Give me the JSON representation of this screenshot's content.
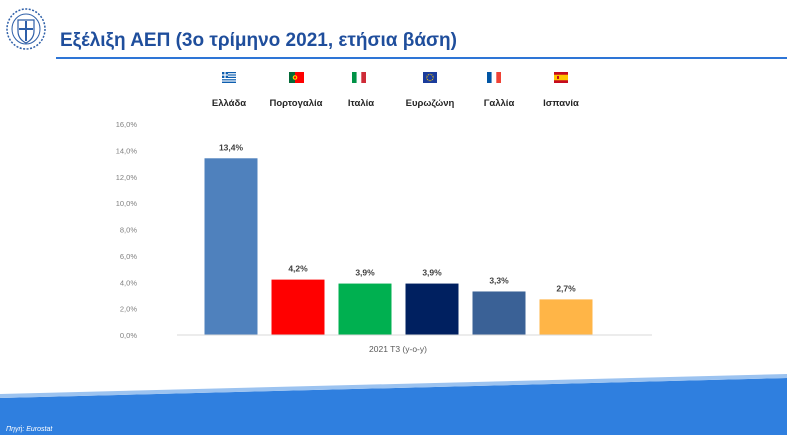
{
  "title": "Εξέλιξη ΑΕΠ (3ο τρίμηνο 2021, ετήσια βάση)",
  "source": "Πηγή: Eurostat",
  "colors": {
    "title": "#1f4e9c",
    "title_rule": "#2e75d6",
    "footer_band": "#2f7fdf",
    "greece": "#4f81bd",
    "portugal": "#ff0000",
    "italy": "#00b050",
    "eurozone": "#002060",
    "france": "#3a6196",
    "spain": "#ffb547"
  },
  "flags": [
    {
      "country": "greece",
      "icon": "greek-flag-icon"
    },
    {
      "country": "portugal",
      "icon": "portuguese-flag-icon"
    },
    {
      "country": "italy",
      "icon": "italian-flag-icon"
    },
    {
      "country": "eurozone",
      "icon": "eu-flag-icon"
    },
    {
      "country": "france",
      "icon": "french-flag-icon"
    },
    {
      "country": "spain",
      "icon": "spanish-flag-icon"
    }
  ],
  "chart_data": {
    "type": "bar",
    "title": "",
    "xlabel": "2021 T3 (y-o-y)",
    "ylabel": "",
    "ylim": [
      0,
      16
    ],
    "yticks": [
      "0,0%",
      "2,0%",
      "4,0%",
      "6,0%",
      "8,0%",
      "10,0%",
      "12,0%",
      "14,0%",
      "16,0%"
    ],
    "grid": false,
    "categories": [
      "Ελλάδα",
      "Πορτογαλία",
      "Ιταλία",
      "Ευρωζώνη",
      "Γαλλία",
      "Ισπανία"
    ],
    "values": [
      13.4,
      4.2,
      3.9,
      3.9,
      3.3,
      2.7
    ],
    "data_labels": [
      "13,4%",
      "4,2%",
      "3,9%",
      "3,9%",
      "3,3%",
      "2,7%"
    ],
    "bar_colors": [
      "#4f81bd",
      "#ff0000",
      "#00b050",
      "#002060",
      "#3a6196",
      "#ffb547"
    ],
    "legend": "top"
  }
}
